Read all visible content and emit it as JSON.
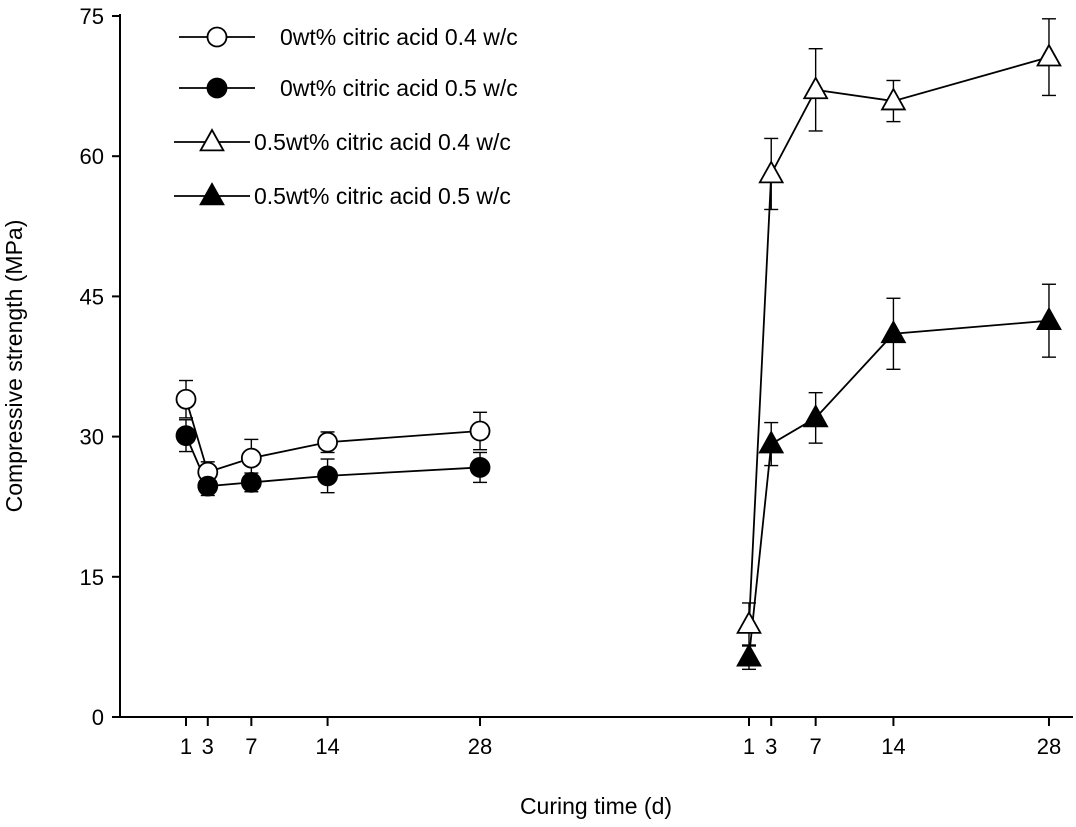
{
  "chart_data": {
    "type": "line",
    "xlabel": "Curing time (d)",
    "ylabel": "Compressive strength (MPa)",
    "ylim": [
      0,
      75
    ],
    "yticks": [
      0,
      15,
      30,
      45,
      60,
      75
    ],
    "xtick_labels": [
      1,
      3,
      7,
      14,
      28
    ],
    "legend_position": "top-left",
    "grid": false,
    "groups": [
      {
        "x": [
          1,
          3,
          7,
          14,
          28
        ],
        "series": [
          {
            "name": "0wt% citric acid 0.4 w/c",
            "marker": "open-circle",
            "values": [
              34.0,
              26.2,
              27.7,
              29.4,
              30.6
            ],
            "errors": [
              2.0,
              1.1,
              2.0,
              1.1,
              2.0
            ]
          },
          {
            "name": "0wt% citric acid 0.5 w/c",
            "marker": "filled-circle",
            "values": [
              30.1,
              24.7,
              25.1,
              25.8,
              26.7
            ],
            "errors": [
              1.7,
              1.0,
              1.0,
              1.8,
              1.6
            ]
          }
        ]
      },
      {
        "x": [
          1,
          3,
          7,
          14,
          28
        ],
        "series": [
          {
            "name": "0.5wt% citric acid 0.4 w/c",
            "marker": "open-triangle",
            "values": [
              9.9,
              58.1,
              67.1,
              65.9,
              70.6
            ],
            "errors": [
              2.3,
              3.8,
              4.4,
              2.2,
              4.1
            ]
          },
          {
            "name": "0.5wt% citric acid 0.5 w/c",
            "marker": "filled-triangle",
            "values": [
              6.4,
              29.2,
              32.0,
              41.0,
              42.4
            ],
            "errors": [
              1.3,
              2.3,
              2.7,
              3.8,
              3.9
            ]
          }
        ]
      }
    ]
  }
}
